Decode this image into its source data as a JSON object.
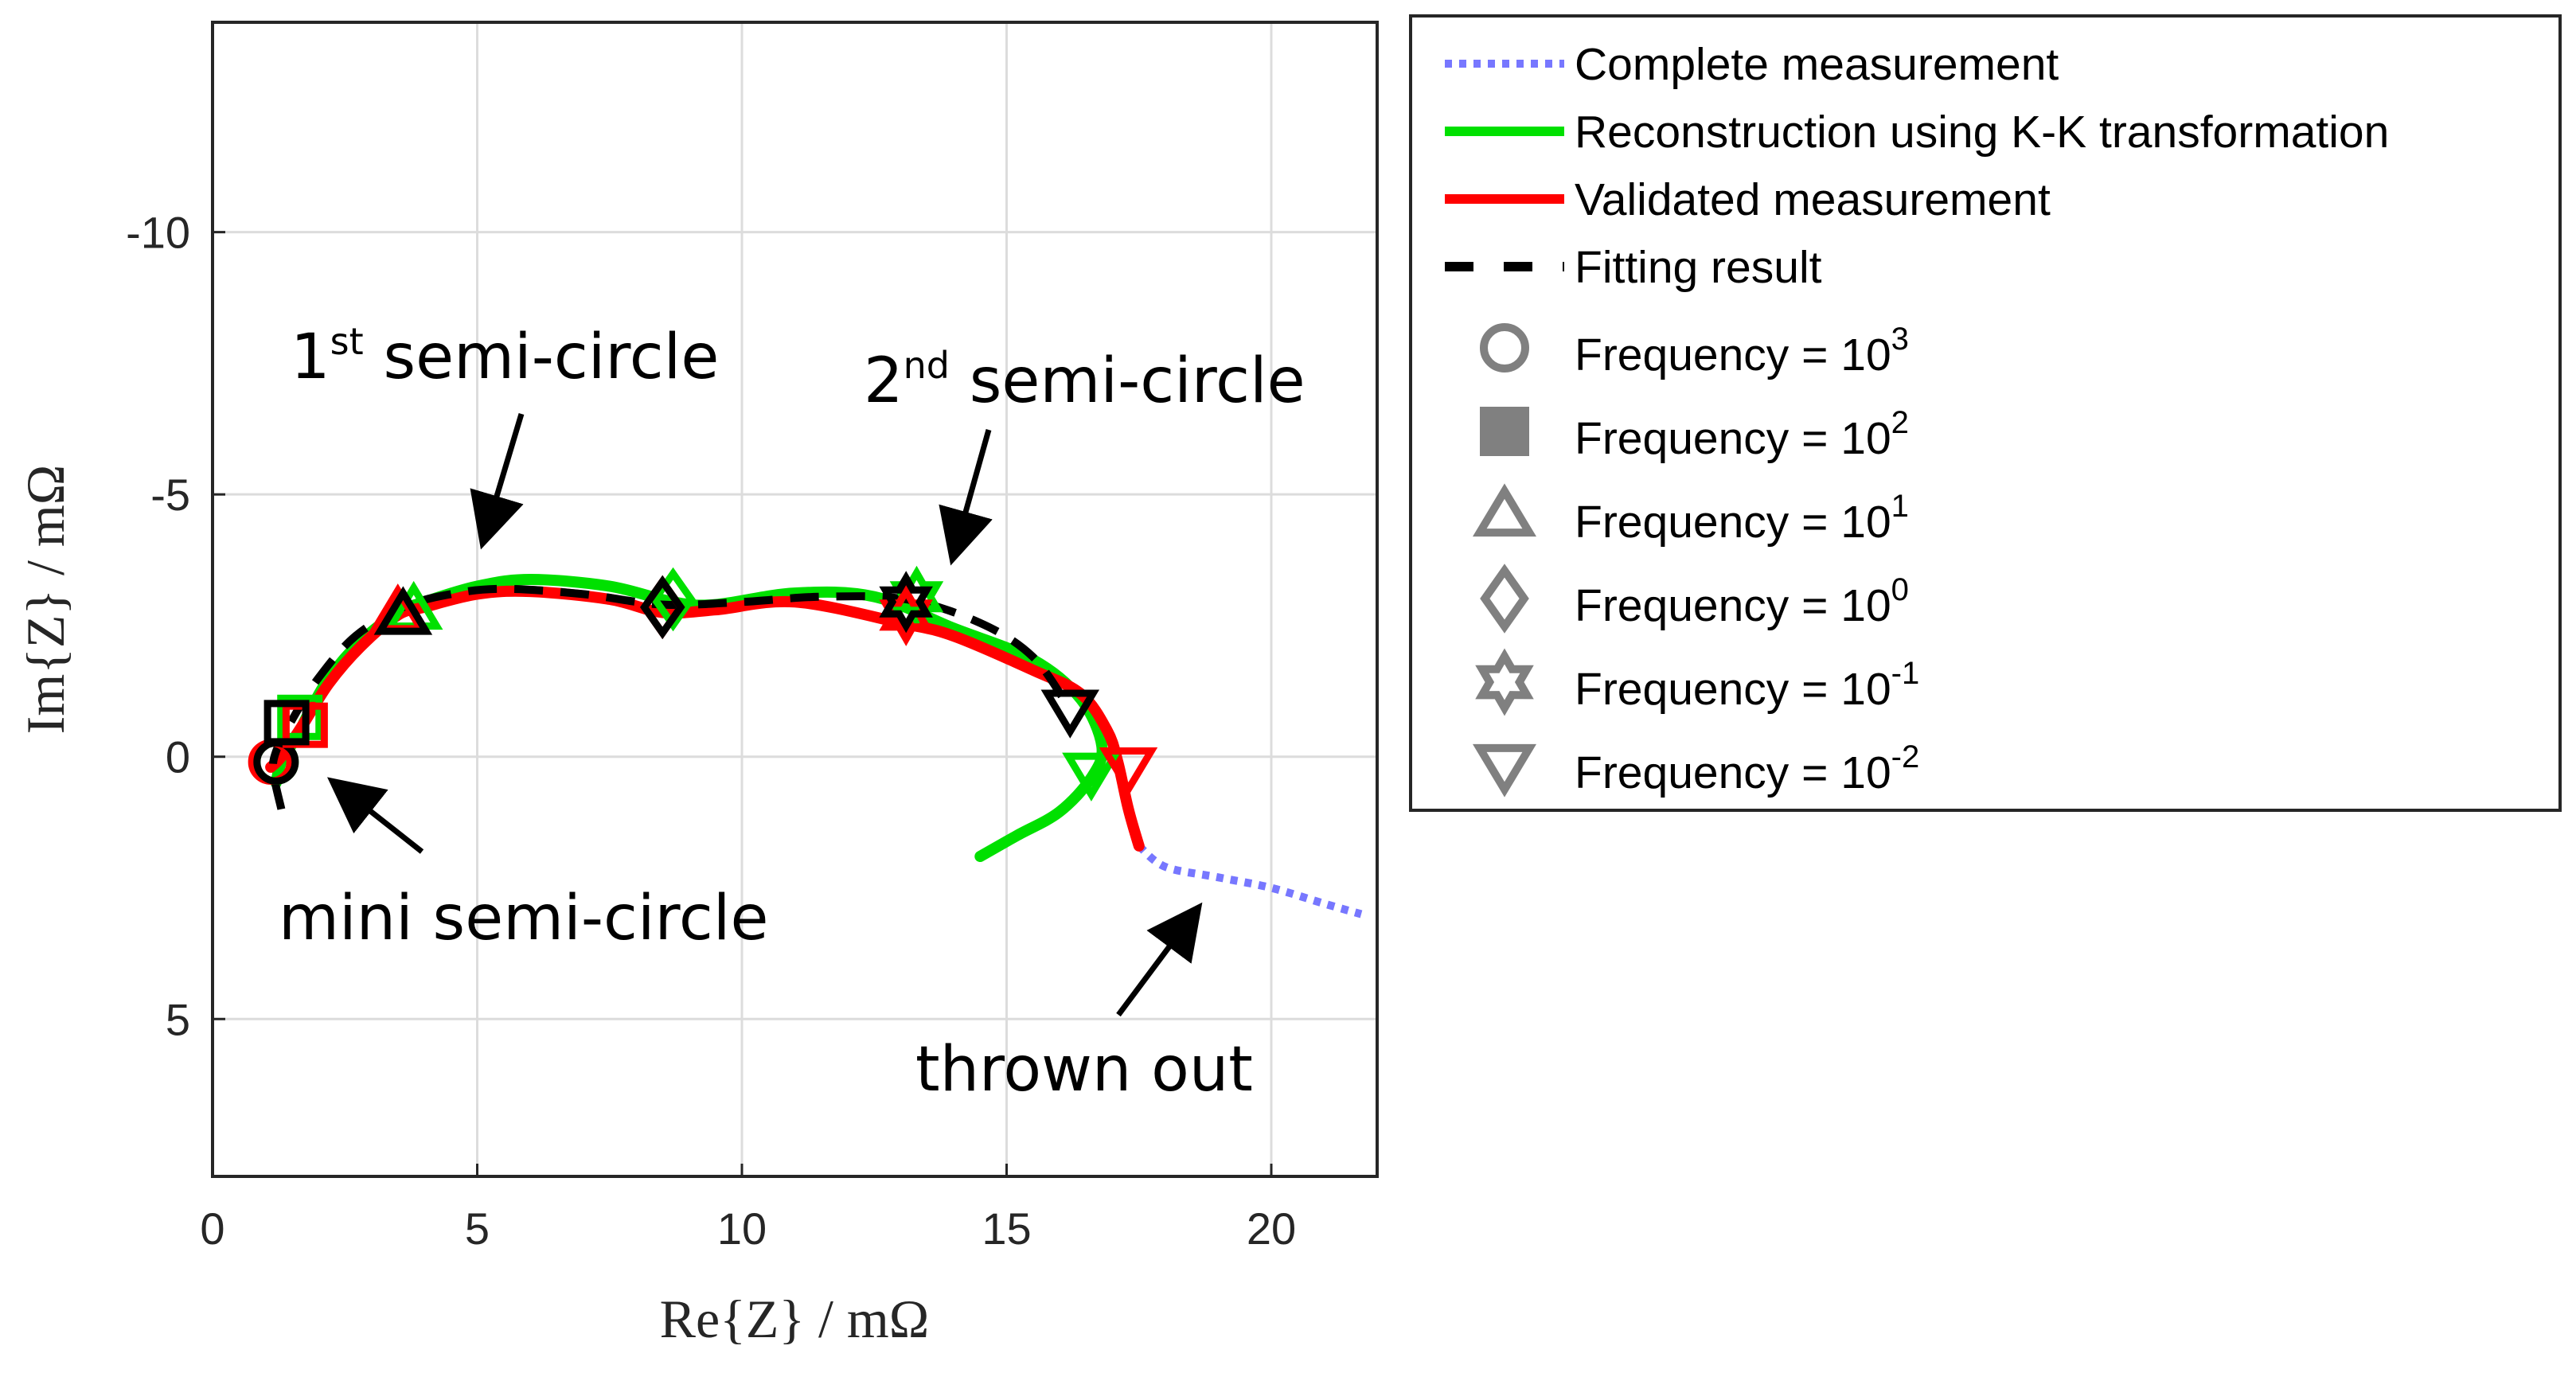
{
  "chart_data": {
    "type": "line",
    "title": "",
    "xlabel": "Re{Z} / mΩ",
    "ylabel": "Im{Z} / mΩ",
    "xlim": [
      0,
      22
    ],
    "ylim": [
      8,
      -14
    ],
    "y_reversed": true,
    "grid": true,
    "x_ticks": [
      0,
      5,
      10,
      15,
      20
    ],
    "x_tick_labels": [
      "0",
      "5",
      "10",
      "15",
      "20"
    ],
    "y_ticks": [
      -10,
      -5,
      0,
      5
    ],
    "y_tick_labels": [
      "-10",
      "-5",
      "0",
      "5"
    ],
    "series": [
      {
        "name": "Complete measurement",
        "style": "dotted",
        "color": "#7777ff",
        "points": [
          [
            17.5,
            1.7
          ],
          [
            18.0,
            2.1
          ],
          [
            19.0,
            2.3
          ],
          [
            20.0,
            2.5
          ],
          [
            21.0,
            2.8
          ],
          [
            21.7,
            3.0
          ]
        ]
      },
      {
        "name": "Reconstruction using K-K transformation",
        "style": "solid",
        "color": "#00e000",
        "points": [
          [
            14.5,
            1.9
          ],
          [
            15.2,
            1.5
          ],
          [
            16.0,
            1.05
          ],
          [
            16.6,
            0.4
          ],
          [
            16.8,
            -0.2
          ],
          [
            16.4,
            -1.1
          ],
          [
            15.5,
            -1.85
          ],
          [
            14.0,
            -2.45
          ],
          [
            12.5,
            -3.05
          ],
          [
            11.0,
            -3.12
          ],
          [
            9.5,
            -2.9
          ],
          [
            8.7,
            -2.95
          ],
          [
            7.5,
            -3.25
          ],
          [
            6.0,
            -3.38
          ],
          [
            5.0,
            -3.25
          ],
          [
            4.0,
            -2.95
          ],
          [
            3.5,
            -2.75
          ],
          [
            2.8,
            -2.2
          ],
          [
            2.2,
            -1.5
          ],
          [
            1.8,
            -0.8
          ],
          [
            1.6,
            -0.4
          ],
          [
            1.3,
            0.1
          ],
          [
            1.2,
            0.5
          ]
        ]
      },
      {
        "name": "Validated measurement",
        "style": "solid",
        "color": "#ff0000",
        "points": [
          [
            17.5,
            1.7
          ],
          [
            17.3,
            1.0
          ],
          [
            17.1,
            0.1
          ],
          [
            16.9,
            -0.5
          ],
          [
            16.4,
            -1.2
          ],
          [
            15.5,
            -1.65
          ],
          [
            14.0,
            -2.3
          ],
          [
            13.0,
            -2.55
          ],
          [
            11.0,
            -2.95
          ],
          [
            9.5,
            -2.8
          ],
          [
            8.5,
            -2.75
          ],
          [
            7.5,
            -3.0
          ],
          [
            6.0,
            -3.15
          ],
          [
            5.0,
            -3.1
          ],
          [
            4.0,
            -2.85
          ],
          [
            3.5,
            -2.7
          ],
          [
            2.8,
            -2.1
          ],
          [
            2.2,
            -1.4
          ],
          [
            1.7,
            -0.6
          ],
          [
            1.3,
            0.0
          ],
          [
            1.1,
            0.2
          ]
        ]
      },
      {
        "name": "Fitting result",
        "style": "dashed",
        "color": "#000000",
        "points": [
          [
            1.3,
            1.0
          ],
          [
            1.15,
            0.3
          ],
          [
            1.2,
            -0.1
          ],
          [
            1.5,
            -0.7
          ],
          [
            2.0,
            -1.5
          ],
          [
            2.7,
            -2.3
          ],
          [
            3.6,
            -2.85
          ],
          [
            4.5,
            -3.1
          ],
          [
            5.5,
            -3.2
          ],
          [
            7.0,
            -3.1
          ],
          [
            8.5,
            -2.9
          ],
          [
            10.0,
            -2.95
          ],
          [
            11.5,
            -3.05
          ],
          [
            13.1,
            -3.0
          ],
          [
            14.5,
            -2.55
          ],
          [
            15.5,
            -1.9
          ],
          [
            16.2,
            -0.9
          ]
        ]
      }
    ],
    "markers": [
      {
        "label": "Frequency = 10^3",
        "shape": "circle",
        "black": [
          1.2,
          0.1
        ],
        "green": [
          1.2,
          0.1
        ],
        "red": [
          1.1,
          0.1
        ]
      },
      {
        "label": "Frequency = 10^2",
        "shape": "square",
        "black": [
          1.4,
          -0.65
        ],
        "green": [
          1.65,
          -0.75
        ],
        "red": [
          1.75,
          -0.6
        ]
      },
      {
        "label": "Frequency = 10^1",
        "shape": "triangle-up",
        "black": [
          3.6,
          -2.7
        ],
        "green": [
          3.8,
          -2.8
        ],
        "red": [
          3.5,
          -2.75
        ]
      },
      {
        "label": "Frequency = 10^0",
        "shape": "diamond",
        "black": [
          8.5,
          -2.85
        ],
        "green": [
          8.7,
          -3.0
        ],
        "red": [
          8.5,
          -2.85
        ]
      },
      {
        "label": "Frequency = 10^-1",
        "shape": "hexagram",
        "black": [
          13.1,
          -2.95
        ],
        "green": [
          13.3,
          -3.05
        ],
        "red": [
          13.1,
          -2.7
        ]
      },
      {
        "label": "Frequency = 10^-2",
        "shape": "triangle-down",
        "black": [
          16.2,
          -0.9
        ],
        "green": [
          16.6,
          0.3
        ],
        "red": [
          17.3,
          0.2
        ]
      }
    ],
    "annotations": [
      {
        "text": "1",
        "sup": "st",
        "rest": " semi-circle"
      },
      {
        "text": "2",
        "sup": "nd",
        "rest": " semi-circle"
      },
      {
        "text": "mini semi-circle"
      },
      {
        "text": "thrown out"
      }
    ],
    "legend": {
      "placement": "right",
      "entries": [
        {
          "label": "Complete measurement",
          "kind": "line",
          "style": "dotted",
          "color": "#7777ff"
        },
        {
          "label": "Reconstruction using K-K transformation",
          "kind": "line",
          "style": "solid",
          "color": "#00e000"
        },
        {
          "label": "Validated measurement",
          "kind": "line",
          "style": "solid",
          "color": "#ff0000"
        },
        {
          "label": "Fitting result",
          "kind": "line",
          "style": "dashed",
          "color": "#000000"
        },
        {
          "label": "Frequency = 10",
          "sup": "3",
          "kind": "marker",
          "shape": "circle",
          "color": "#808080"
        },
        {
          "label": "Frequency  = 10",
          "sup": "2",
          "kind": "marker",
          "shape": "square",
          "color": "#808080"
        },
        {
          "label": "Frequency  = 10",
          "sup": "1",
          "kind": "marker",
          "shape": "triangle-up",
          "color": "#808080"
        },
        {
          "label": "Frequency  = 10",
          "sup": "0",
          "kind": "marker",
          "shape": "diamond",
          "color": "#808080"
        },
        {
          "label": "Frequency  = 10",
          "sup": "-1",
          "kind": "marker",
          "shape": "hexagram",
          "color": "#808080"
        },
        {
          "label": "Frequency  = 10",
          "sup": "-2",
          "kind": "marker",
          "shape": "triangle-down",
          "color": "#808080"
        }
      ]
    }
  }
}
